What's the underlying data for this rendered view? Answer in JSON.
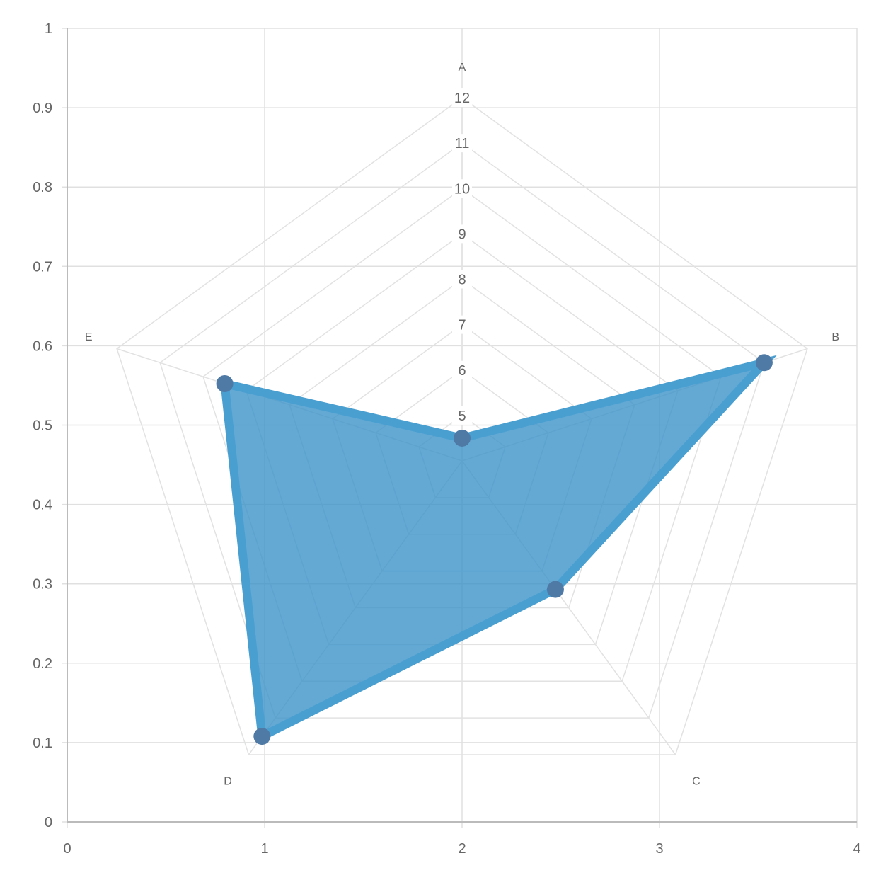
{
  "chart_data": {
    "type": "radar",
    "cartesian_axes": {
      "x": {
        "min": 0,
        "max": 4,
        "ticks": [
          0,
          1,
          2,
          3,
          4
        ]
      },
      "y": {
        "min": 0,
        "max": 1,
        "ticks": [
          0,
          0.1,
          0.2,
          0.3,
          0.4,
          0.5,
          0.6,
          0.7,
          0.8,
          0.9,
          1
        ]
      }
    },
    "radial": {
      "min": 4,
      "max": 12,
      "ticks": [
        5,
        6,
        7,
        8,
        9,
        10,
        11,
        12
      ],
      "labels": [
        "A",
        "B",
        "C",
        "D",
        "E"
      ]
    },
    "series": [
      {
        "values": [
          4.5,
          11,
          7.5,
          11.5,
          9.5
        ],
        "color": "#4a9fd1",
        "point_color": "#4f7aa6"
      }
    ]
  }
}
